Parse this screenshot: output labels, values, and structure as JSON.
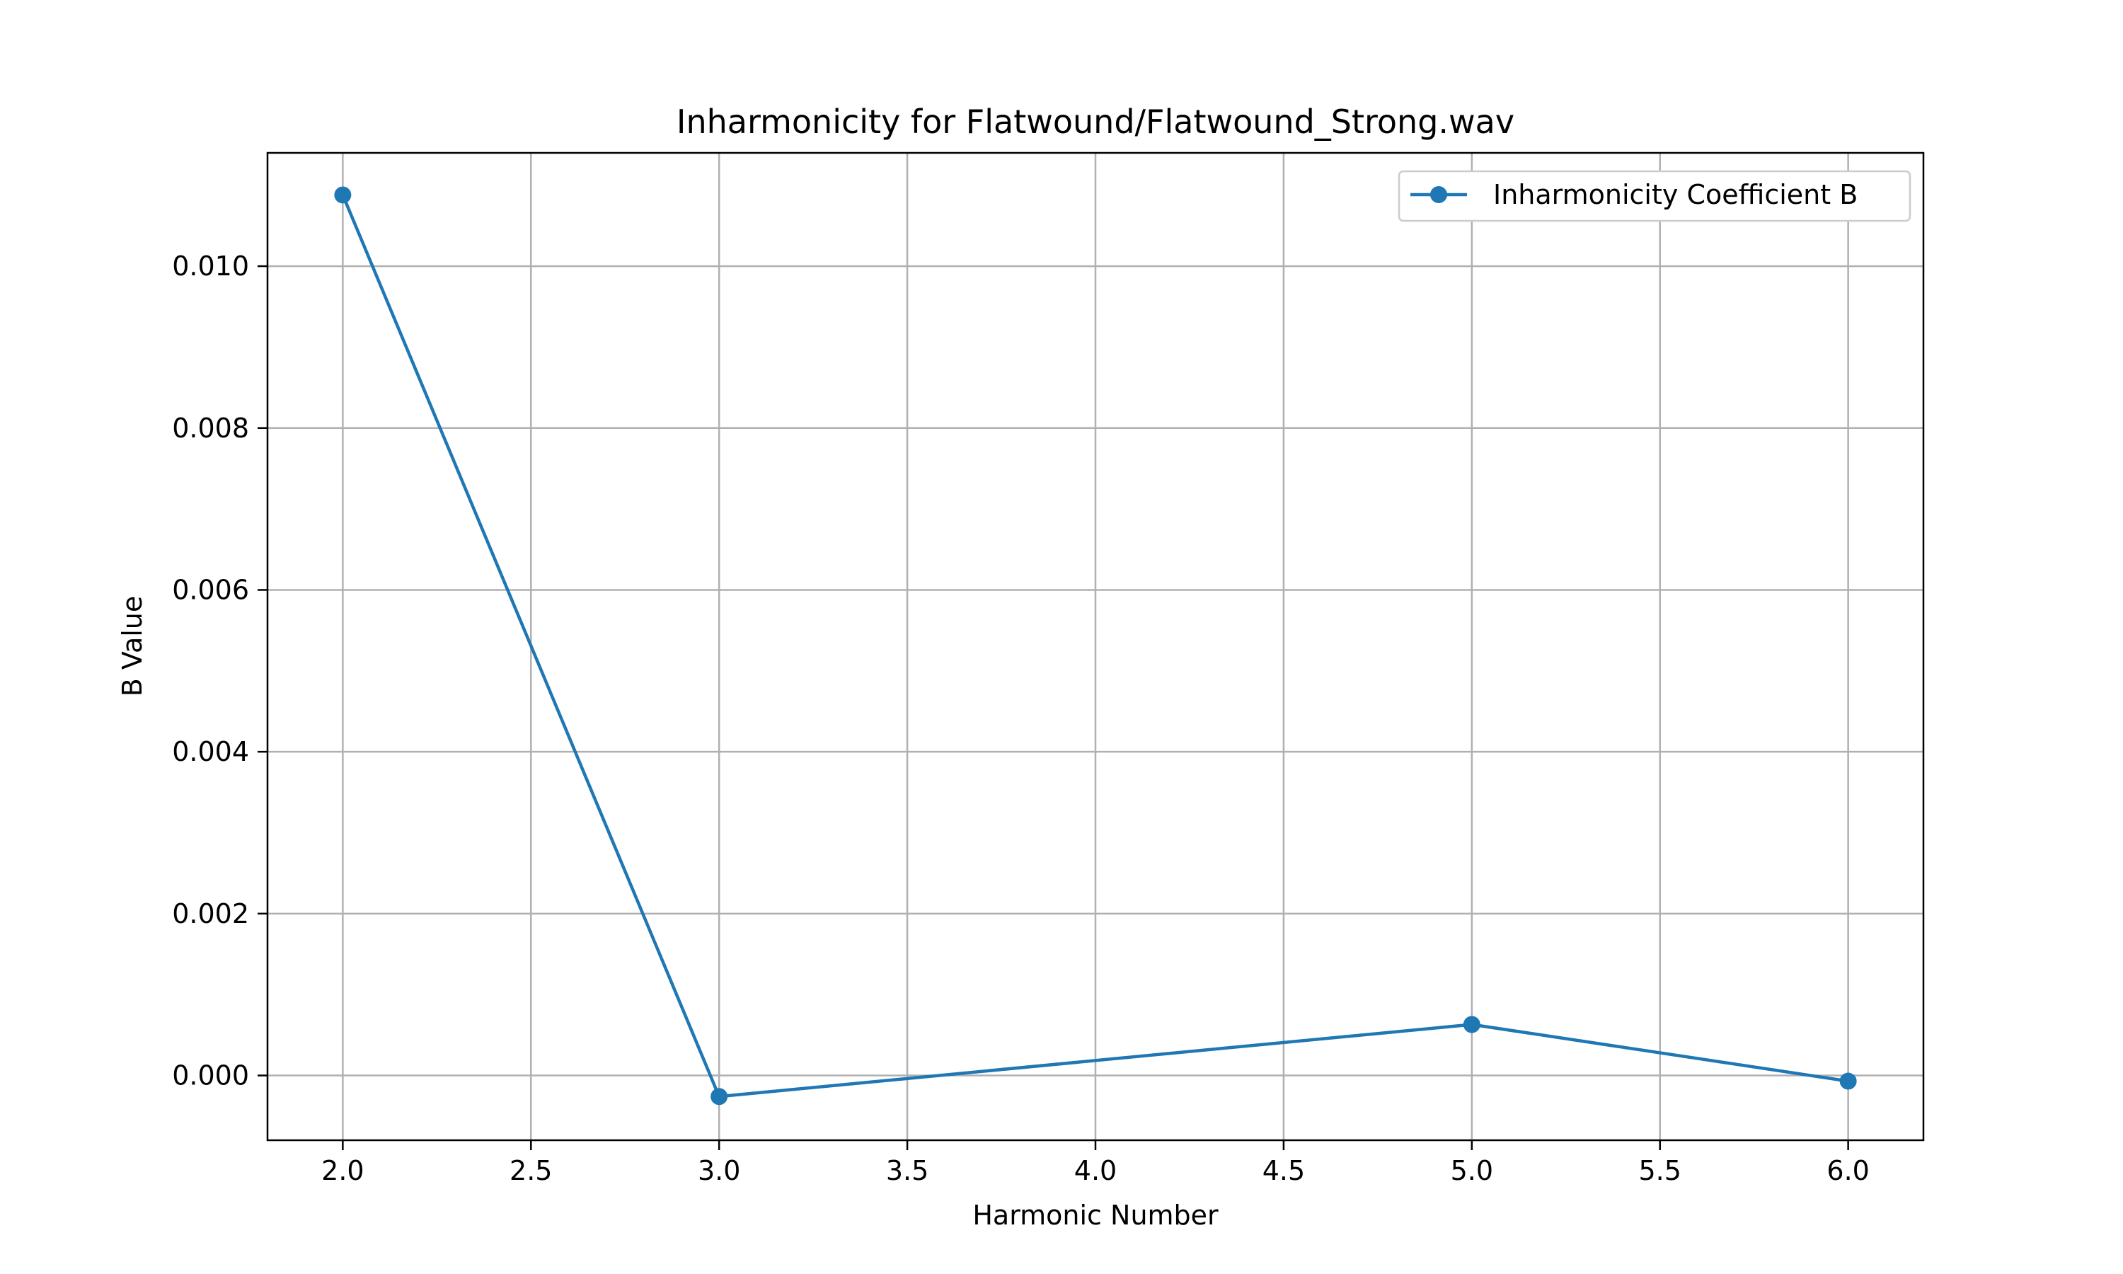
{
  "chart_data": {
    "type": "line",
    "title": "Inharmonicity for Flatwound/Flatwound_Strong.wav",
    "xlabel": "Harmonic Number",
    "ylabel": "B Value",
    "xlim": [
      1.8,
      6.2
    ],
    "ylim": [
      -0.0008,
      0.0114
    ],
    "xticks": [
      2.0,
      2.5,
      3.0,
      3.5,
      4.0,
      4.5,
      5.0,
      5.5,
      6.0
    ],
    "xtick_labels": [
      "2.0",
      "2.5",
      "3.0",
      "3.5",
      "4.0",
      "4.5",
      "5.0",
      "5.5",
      "6.0"
    ],
    "yticks": [
      0.0,
      0.002,
      0.004,
      0.006,
      0.008,
      0.01
    ],
    "ytick_labels": [
      "0.000",
      "0.002",
      "0.004",
      "0.006",
      "0.008",
      "0.010"
    ],
    "grid": true,
    "legend_position": "top-right",
    "series": [
      {
        "name": "Inharmonicity Coefficient B",
        "color": "#1f77b4",
        "marker": "circle",
        "x": [
          2,
          3,
          5,
          6
        ],
        "y": [
          0.01088,
          -0.00026,
          0.00063,
          -7e-05
        ]
      }
    ]
  }
}
